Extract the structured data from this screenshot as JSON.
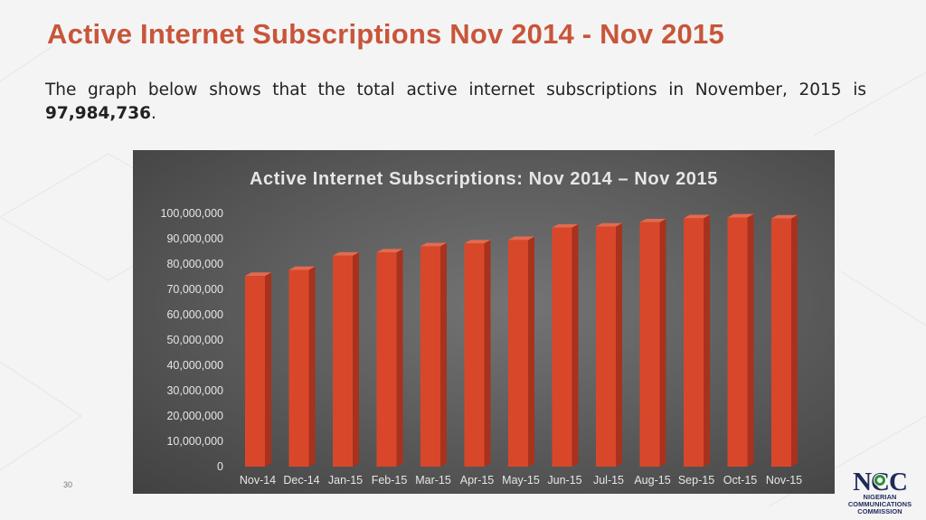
{
  "slide": {
    "title": "Active Internet Subscriptions Nov 2014 - Nov 2015",
    "body_text": "The graph below shows that the total active internet subscriptions in November, 2015 is ",
    "body_value": "97,984,736",
    "body_end": ".",
    "page_number": "30"
  },
  "logo": {
    "mark": "NCC",
    "line1": "NIGERIAN",
    "line2": "COMMUNICATIONS",
    "line3": "COMMISSION",
    "icon": "ncc-logo-icon"
  },
  "colors": {
    "title": "#c8553a",
    "bar_front": "#d9472b",
    "bar_side": "#a8321d",
    "bar_top": "#e46a4f",
    "chart_text": "#e6e6e6",
    "logo_navy": "#1e2a5a"
  },
  "chart_data": {
    "type": "bar",
    "title": "Active Internet Subscriptions: Nov 2014 – Nov 2015",
    "xlabel": "",
    "ylabel": "",
    "ylim": [
      0,
      100000000
    ],
    "yticks": [
      0,
      10000000,
      20000000,
      30000000,
      40000000,
      50000000,
      60000000,
      70000000,
      80000000,
      90000000,
      100000000
    ],
    "ytick_labels": [
      "0",
      "10,000,000",
      "20,000,000",
      "30,000,000",
      "40,000,000",
      "50,000,000",
      "60,000,000",
      "70,000,000",
      "80,000,000",
      "90,000,000",
      "100,000,000"
    ],
    "categories": [
      "Nov-14",
      "Dec-14",
      "Jan-15",
      "Feb-15",
      "Mar-15",
      "Apr-15",
      "May-15",
      "Jun-15",
      "Jul-15",
      "Aug-15",
      "Sep-15",
      "Oct-15",
      "Nov-15"
    ],
    "values": [
      75300000,
      77700000,
      83300000,
      84600000,
      87000000,
      88200000,
      89500000,
      94400000,
      94800000,
      96500000,
      98100000,
      98400000,
      97984736
    ],
    "grid": false,
    "legend": "none",
    "style": "3d-bar"
  }
}
